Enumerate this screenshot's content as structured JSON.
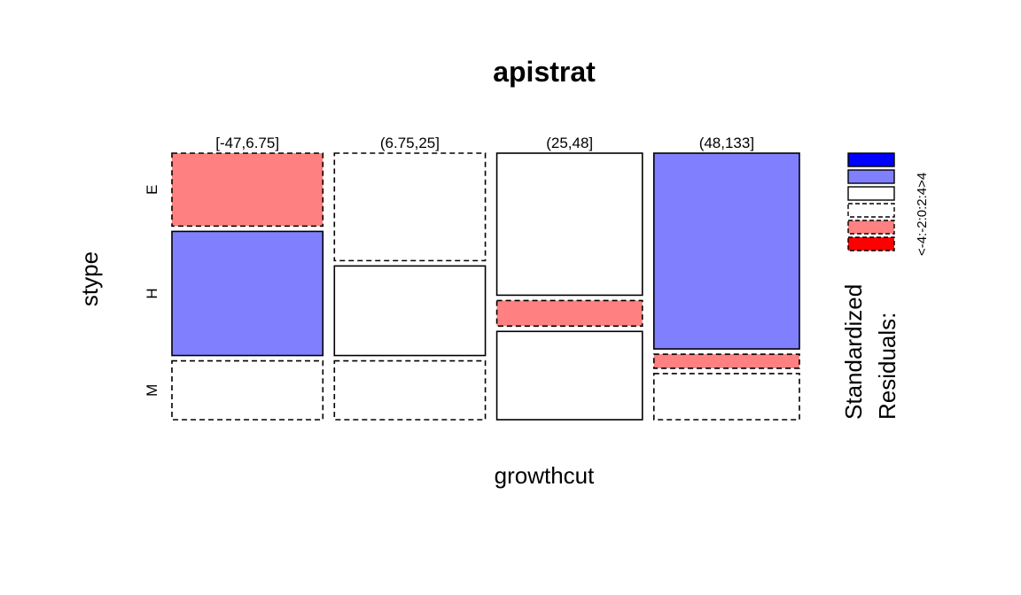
{
  "chart_data": {
    "type": "mosaic",
    "title": "apistrat",
    "xlabel": "growthcut",
    "ylabel": "stype",
    "x_categories": [
      "[-47,6.75]",
      "(6.75,25]",
      "(25,48]",
      "(48,133]"
    ],
    "y_categories": [
      "E",
      "H",
      "M"
    ],
    "col_widths": [
      0.2632,
      0.2632,
      0.2538,
      0.2538
    ],
    "cells": [
      {
        "x": "[-47,6.75]",
        "y": "E",
        "prop": 0.285,
        "residual_bin": "-4:-2"
      },
      {
        "x": "[-47,6.75]",
        "y": "H",
        "prop": 0.485,
        "residual_bin": "2:4"
      },
      {
        "x": "[-47,6.75]",
        "y": "M",
        "prop": 0.23,
        "residual_bin": "-2:0"
      },
      {
        "x": "(6.75,25]",
        "y": "E",
        "prop": 0.42,
        "residual_bin": "-2:0"
      },
      {
        "x": "(6.75,25]",
        "y": "H",
        "prop": 0.35,
        "residual_bin": "0:2"
      },
      {
        "x": "(6.75,25]",
        "y": "M",
        "prop": 0.23,
        "residual_bin": "-2:0"
      },
      {
        "x": "(25,48]",
        "y": "E",
        "prop": 0.555,
        "residual_bin": "0:2"
      },
      {
        "x": "(25,48]",
        "y": "H",
        "prop": 0.1,
        "residual_bin": "-4:-2"
      },
      {
        "x": "(25,48]",
        "y": "M",
        "prop": 0.345,
        "residual_bin": "0:2"
      },
      {
        "x": "(48,133]",
        "y": "E",
        "prop": 0.765,
        "residual_bin": "2:4"
      },
      {
        "x": "(48,133]",
        "y": "H",
        "prop": 0.055,
        "residual_bin": "-4:-2"
      },
      {
        "x": "(48,133]",
        "y": "M",
        "prop": 0.18,
        "residual_bin": "-2:0"
      }
    ],
    "legend": {
      "title_line1": "Standardized",
      "title_line2": "Residuals:",
      "tick_text": "<-4:-2:0:2:4>4",
      "bins": [
        {
          "label": ">4",
          "color": "#0000ff",
          "dashed": false
        },
        {
          "label": "2:4",
          "color": "#8080ff",
          "dashed": false
        },
        {
          "label": "0:2",
          "color": "#ffffff",
          "dashed": false
        },
        {
          "label": "-2:0",
          "color": "#ffffff",
          "dashed": true
        },
        {
          "label": "-4:-2",
          "color": "#ff8080",
          "dashed": true
        },
        {
          "label": "<-4",
          "color": "#ff0000",
          "dashed": true
        }
      ]
    },
    "colors": {
      "strong_positive": "#0000ff",
      "positive": "#8080ff",
      "negative": "#ff8080",
      "strong_negative": "#ff0000",
      "neutral": "#ffffff"
    }
  }
}
